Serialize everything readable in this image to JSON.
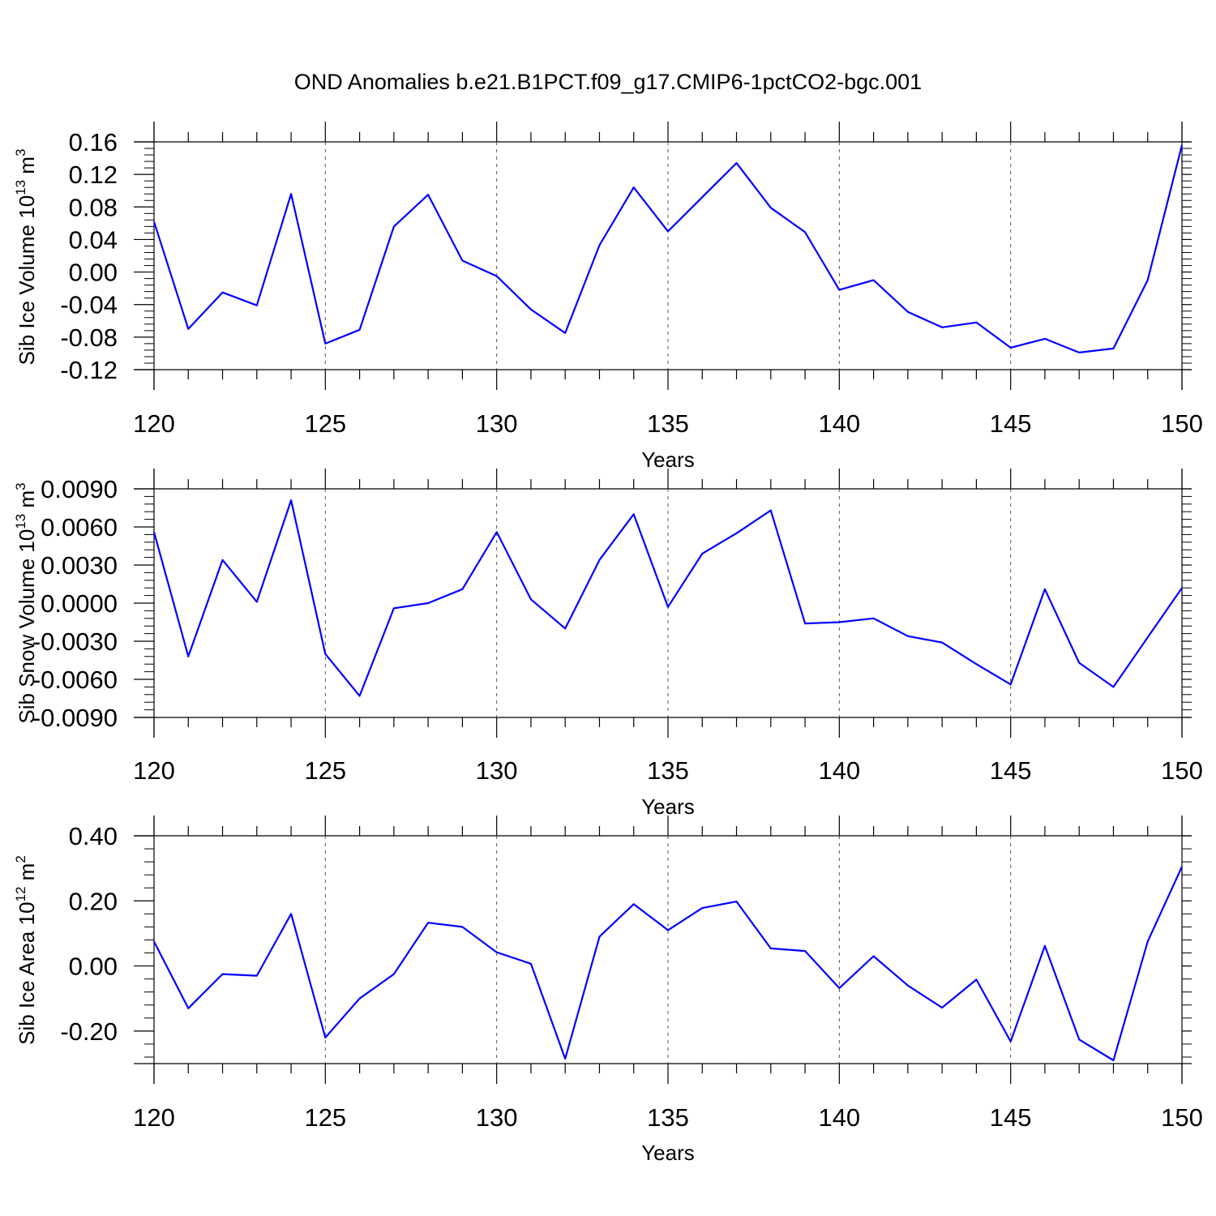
{
  "title": "OND Anomalies b.e21.B1PCT.f09_g17.CMIP6-1pctCO2-bgc.001",
  "colors": {
    "line": "#0000ff",
    "axis": "#000000",
    "grid": "#555555"
  },
  "chart_data": [
    {
      "type": "line",
      "ylabel": "Sib Ice Volume 10",
      "ylabel_exp": "13",
      "ylabel_unit": " m",
      "ylabel_unit_exp": "3",
      "xlabel": "Years",
      "xlim": [
        120,
        150
      ],
      "ylim": [
        -0.12,
        0.16
      ],
      "x_ticks": [
        120,
        125,
        130,
        135,
        140,
        145,
        150
      ],
      "x_tick_labels": [
        "120",
        "125",
        "130",
        "135",
        "140",
        "145",
        "150"
      ],
      "y_ticks": [
        -0.12,
        -0.08,
        -0.04,
        0.0,
        0.04,
        0.08,
        0.12,
        0.16
      ],
      "y_tick_labels": [
        "-0.12",
        "-0.08",
        "-0.04",
        "0.00",
        "0.04",
        "0.08",
        "0.12",
        "0.16"
      ],
      "x": [
        120,
        121,
        122,
        123,
        124,
        125,
        126,
        127,
        128,
        129,
        130,
        131,
        132,
        133,
        134,
        135,
        136,
        137,
        138,
        139,
        140,
        141,
        142,
        143,
        144,
        145,
        146,
        147,
        148,
        149,
        150
      ],
      "values": [
        0.062,
        -0.07,
        -0.025,
        -0.041,
        0.096,
        -0.088,
        -0.071,
        0.056,
        0.095,
        0.014,
        -0.005,
        -0.046,
        -0.075,
        0.033,
        0.104,
        0.05,
        0.092,
        0.134,
        0.079,
        0.049,
        -0.022,
        -0.01,
        -0.049,
        -0.068,
        -0.062,
        -0.093,
        -0.082,
        -0.099,
        -0.094,
        -0.01,
        0.156
      ]
    },
    {
      "type": "line",
      "ylabel": "Sib Snow Volume 10",
      "ylabel_exp": "13",
      "ylabel_unit": " m",
      "ylabel_unit_exp": "3",
      "xlabel": "Years",
      "xlim": [
        120,
        150
      ],
      "ylim": [
        -0.009,
        0.009
      ],
      "x_ticks": [
        120,
        125,
        130,
        135,
        140,
        145,
        150
      ],
      "x_tick_labels": [
        "120",
        "125",
        "130",
        "135",
        "140",
        "145",
        "150"
      ],
      "y_ticks": [
        -0.009,
        -0.006,
        -0.003,
        0.0,
        0.003,
        0.006,
        0.009
      ],
      "y_tick_labels": [
        "-0.0090",
        "-0.0060",
        "-0.0030",
        "0.0000",
        "0.0030",
        "0.0060",
        "0.0090"
      ],
      "x": [
        120,
        121,
        122,
        123,
        124,
        125,
        126,
        127,
        128,
        129,
        130,
        131,
        132,
        133,
        134,
        135,
        136,
        137,
        138,
        139,
        140,
        141,
        142,
        143,
        144,
        145,
        146,
        147,
        148,
        149,
        150
      ],
      "values": [
        0.0056,
        -0.0042,
        0.0034,
        0.0001,
        0.0081,
        -0.004,
        -0.0073,
        -0.0004,
        0.0,
        0.0011,
        0.0056,
        0.0003,
        -0.002,
        0.0034,
        0.007,
        -0.0003,
        0.0039,
        0.0055,
        0.0073,
        -0.0016,
        -0.0015,
        -0.0012,
        -0.0026,
        -0.0031,
        -0.0048,
        -0.0064,
        0.0011,
        -0.0047,
        -0.0066,
        -0.0027,
        0.0012
      ]
    },
    {
      "type": "line",
      "ylabel": "Sib Ice Area 10",
      "ylabel_exp": "12",
      "ylabel_unit": " m",
      "ylabel_unit_exp": "2",
      "xlabel": "Years",
      "xlim": [
        120,
        150
      ],
      "ylim": [
        -0.3,
        0.4
      ],
      "x_ticks": [
        120,
        125,
        130,
        135,
        140,
        145,
        150
      ],
      "x_tick_labels": [
        "120",
        "125",
        "130",
        "135",
        "140",
        "145",
        "150"
      ],
      "y_ticks": [
        -0.2,
        0.0,
        0.2,
        0.4
      ],
      "y_tick_labels": [
        "-0.20",
        "0.00",
        "0.20",
        "0.40"
      ],
      "x": [
        120,
        121,
        122,
        123,
        124,
        125,
        126,
        127,
        128,
        129,
        130,
        131,
        132,
        133,
        134,
        135,
        136,
        137,
        138,
        139,
        140,
        141,
        142,
        143,
        144,
        145,
        146,
        147,
        148,
        149,
        150
      ],
      "values": [
        0.075,
        -0.13,
        -0.025,
        -0.03,
        0.16,
        -0.22,
        -0.1,
        -0.025,
        0.133,
        0.12,
        0.042,
        0.007,
        -0.285,
        0.09,
        0.19,
        0.11,
        0.178,
        0.198,
        0.054,
        0.046,
        -0.068,
        0.03,
        -0.06,
        -0.128,
        -0.042,
        -0.232,
        0.062,
        -0.226,
        -0.29,
        0.075,
        0.305
      ]
    }
  ]
}
